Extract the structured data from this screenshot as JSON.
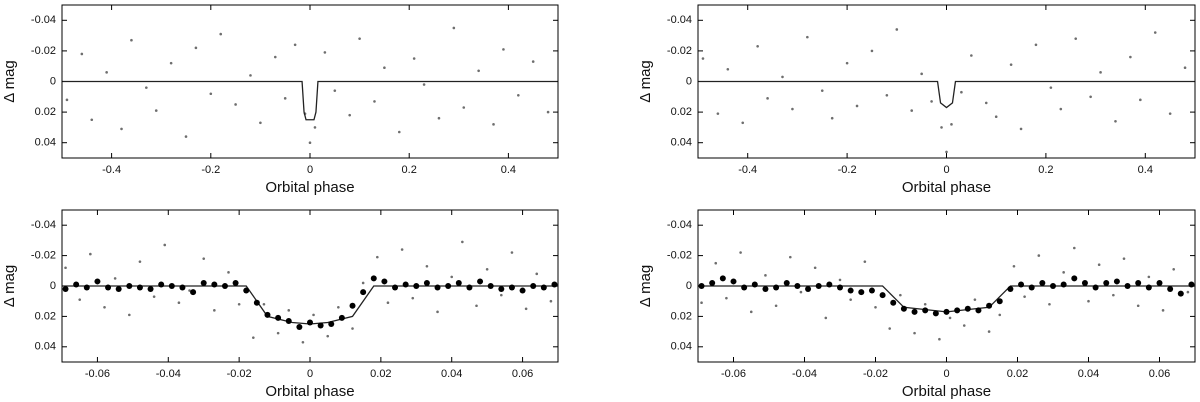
{
  "chart_data": [
    {
      "type": "scatter",
      "xlabel": "Orbital phase",
      "ylabel": "Δ mag",
      "xlim": [
        -0.5,
        0.5
      ],
      "ylim": [
        0.05,
        -0.05
      ],
      "xticks": [
        -0.4,
        -0.2,
        0,
        0.2,
        0.4
      ],
      "yticks": [
        -0.04,
        -0.02,
        0,
        0.02,
        0.04
      ],
      "series": [
        {
          "style": "points",
          "color": "#6e6e6e",
          "x": [
            -0.49,
            -0.46,
            -0.44,
            -0.41,
            -0.38,
            -0.36,
            -0.33,
            -0.31,
            -0.28,
            -0.25,
            -0.23,
            -0.2,
            -0.18,
            -0.15,
            -0.12,
            -0.1,
            -0.07,
            -0.05,
            -0.03,
            -0.01,
            0.0,
            0.01,
            0.03,
            0.05,
            0.08,
            0.1,
            0.13,
            0.15,
            0.18,
            0.21,
            0.23,
            0.26,
            0.29,
            0.31,
            0.34,
            0.37,
            0.39,
            0.42,
            0.45,
            0.48
          ],
          "values": [
            0.012,
            -0.018,
            0.025,
            -0.006,
            0.031,
            -0.027,
            0.004,
            0.019,
            -0.012,
            0.036,
            -0.022,
            0.008,
            -0.031,
            0.015,
            -0.004,
            0.027,
            -0.016,
            0.011,
            -0.024,
            0.021,
            0.04,
            0.03,
            -0.019,
            0.006,
            0.022,
            -0.028,
            0.013,
            -0.009,
            0.033,
            -0.015,
            0.002,
            0.024,
            -0.035,
            0.017,
            -0.007,
            0.028,
            -0.021,
            0.009,
            -0.013,
            0.02
          ]
        },
        {
          "style": "line",
          "color": "#222222",
          "x": [
            -0.5,
            -0.016,
            -0.012,
            -0.008,
            0.008,
            0.012,
            0.016,
            0.5
          ],
          "values": [
            0,
            0,
            0.02,
            0.025,
            0.025,
            0.02,
            0,
            0
          ]
        }
      ]
    },
    {
      "type": "scatter",
      "xlabel": "Orbital phase",
      "ylabel": "Δ mag",
      "xlim": [
        -0.5,
        0.5
      ],
      "ylim": [
        0.05,
        -0.05
      ],
      "xticks": [
        -0.4,
        -0.2,
        0,
        0.2,
        0.4
      ],
      "yticks": [
        -0.04,
        -0.02,
        0,
        0.02,
        0.04
      ],
      "series": [
        {
          "style": "points",
          "color": "#6e6e6e",
          "x": [
            -0.49,
            -0.46,
            -0.44,
            -0.41,
            -0.38,
            -0.36,
            -0.33,
            -0.31,
            -0.28,
            -0.25,
            -0.23,
            -0.2,
            -0.18,
            -0.15,
            -0.12,
            -0.1,
            -0.07,
            -0.05,
            -0.03,
            -0.01,
            0.0,
            0.01,
            0.03,
            0.05,
            0.08,
            0.1,
            0.13,
            0.15,
            0.18,
            0.21,
            0.23,
            0.26,
            0.29,
            0.31,
            0.34,
            0.37,
            0.39,
            0.42,
            0.45,
            0.48
          ],
          "values": [
            -0.015,
            0.021,
            -0.008,
            0.027,
            -0.023,
            0.011,
            -0.003,
            0.018,
            -0.029,
            0.006,
            0.024,
            -0.012,
            0.016,
            -0.02,
            0.009,
            -0.034,
            0.019,
            -0.005,
            0.013,
            0.03,
            0.046,
            0.028,
            0.007,
            -0.017,
            0.014,
            0.023,
            -0.011,
            0.031,
            -0.024,
            0.004,
            0.018,
            -0.028,
            0.01,
            -0.006,
            0.026,
            -0.016,
            0.012,
            -0.032,
            0.021,
            -0.009
          ]
        },
        {
          "style": "line",
          "color": "#222222",
          "x": [
            -0.5,
            -0.018,
            -0.012,
            0,
            0.012,
            0.018,
            0.5
          ],
          "values": [
            0,
            0,
            0.014,
            0.017,
            0.014,
            0,
            0
          ]
        }
      ]
    },
    {
      "type": "scatter",
      "xlabel": "Orbital phase",
      "ylabel": "Δ mag",
      "xlim": [
        -0.07,
        0.07
      ],
      "ylim": [
        0.05,
        -0.05
      ],
      "xticks": [
        -0.06,
        -0.04,
        -0.02,
        0,
        0.02,
        0.04,
        0.06
      ],
      "yticks": [
        -0.04,
        -0.02,
        0,
        0.02,
        0.04
      ],
      "series": [
        {
          "style": "points",
          "color": "#6e6e6e",
          "x": [
            -0.069,
            -0.065,
            -0.062,
            -0.058,
            -0.055,
            -0.051,
            -0.048,
            -0.044,
            -0.041,
            -0.037,
            -0.034,
            -0.03,
            -0.027,
            -0.023,
            -0.02,
            -0.016,
            -0.013,
            -0.009,
            -0.006,
            -0.002,
            0.001,
            0.005,
            0.008,
            0.012,
            0.015,
            0.019,
            0.022,
            0.026,
            0.029,
            0.033,
            0.036,
            0.04,
            0.043,
            0.047,
            0.05,
            0.054,
            0.057,
            0.061,
            0.064,
            0.068
          ],
          "values": [
            -0.012,
            0.009,
            -0.021,
            0.014,
            -0.005,
            0.019,
            -0.016,
            0.007,
            -0.027,
            0.011,
            0.003,
            -0.018,
            0.016,
            -0.009,
            0.012,
            0.034,
            0.012,
            0.031,
            0.016,
            0.037,
            0.019,
            0.033,
            0.014,
            0.028,
            -0.002,
            -0.019,
            0.011,
            -0.024,
            0.008,
            -0.013,
            0.017,
            -0.006,
            -0.029,
            0.013,
            -0.011,
            0.006,
            -0.022,
            0.015,
            -0.008,
            0.01
          ]
        },
        {
          "style": "line",
          "color": "#222222",
          "x": [
            -0.07,
            -0.018,
            -0.012,
            -0.005,
            0,
            0.005,
            0.012,
            0.018,
            0.07
          ],
          "values": [
            0,
            0,
            0.02,
            0.024,
            0.025,
            0.024,
            0.02,
            0,
            0
          ]
        },
        {
          "style": "dots",
          "color": "#000000",
          "x": [
            -0.069,
            -0.066,
            -0.063,
            -0.06,
            -0.057,
            -0.054,
            -0.051,
            -0.048,
            -0.045,
            -0.042,
            -0.039,
            -0.036,
            -0.033,
            -0.03,
            -0.027,
            -0.024,
            -0.021,
            -0.018,
            -0.015,
            -0.012,
            -0.009,
            -0.006,
            -0.003,
            0,
            0.003,
            0.006,
            0.009,
            0.012,
            0.015,
            0.018,
            0.021,
            0.024,
            0.027,
            0.03,
            0.033,
            0.036,
            0.039,
            0.042,
            0.045,
            0.048,
            0.051,
            0.054,
            0.057,
            0.06,
            0.063,
            0.066,
            0.069
          ],
          "values": [
            0.002,
            -0.001,
            0.001,
            -0.003,
            0.001,
            0.002,
            0,
            0.001,
            0.002,
            -0.001,
            0,
            0.001,
            0.004,
            -0.002,
            -0.001,
            0,
            -0.002,
            0.003,
            0.011,
            0.019,
            0.021,
            0.023,
            0.027,
            0.024,
            0.026,
            0.025,
            0.021,
            0.013,
            0.004,
            -0.005,
            -0.003,
            0.001,
            -0.001,
            0,
            -0.002,
            0.001,
            0,
            -0.002,
            0.001,
            -0.003,
            0,
            0.002,
            0.001,
            0.003,
            0,
            0.001,
            -0.001
          ]
        }
      ]
    },
    {
      "type": "scatter",
      "xlabel": "Orbital phase",
      "ylabel": "Δ mag",
      "xlim": [
        -0.07,
        0.07
      ],
      "ylim": [
        0.05,
        -0.05
      ],
      "xticks": [
        -0.06,
        -0.04,
        -0.02,
        0,
        0.02,
        0.04,
        0.06
      ],
      "yticks": [
        -0.04,
        -0.02,
        0,
        0.02,
        0.04
      ],
      "series": [
        {
          "style": "points",
          "color": "#6e6e6e",
          "x": [
            -0.069,
            -0.065,
            -0.062,
            -0.058,
            -0.055,
            -0.051,
            -0.048,
            -0.044,
            -0.041,
            -0.037,
            -0.034,
            -0.03,
            -0.027,
            -0.023,
            -0.02,
            -0.016,
            -0.013,
            -0.009,
            -0.006,
            -0.002,
            0.001,
            0.005,
            0.008,
            0.012,
            0.015,
            0.019,
            0.022,
            0.026,
            0.029,
            0.033,
            0.036,
            0.04,
            0.043,
            0.047,
            0.05,
            0.054,
            0.057,
            0.061,
            0.064,
            0.068
          ],
          "values": [
            0.011,
            -0.015,
            0.008,
            -0.022,
            0.017,
            -0.007,
            0.013,
            -0.019,
            0.004,
            -0.012,
            0.021,
            -0.004,
            0.009,
            -0.016,
            0.014,
            0.028,
            0.006,
            0.031,
            0.012,
            0.035,
            0.021,
            0.026,
            0.009,
            0.03,
            0.019,
            -0.013,
            0.007,
            -0.02,
            0.012,
            -0.009,
            -0.025,
            0.01,
            -0.014,
            0.006,
            -0.018,
            0.013,
            -0.006,
            0.016,
            -0.011,
            0.004
          ]
        },
        {
          "style": "line",
          "color": "#222222",
          "x": [
            -0.07,
            -0.018,
            -0.012,
            0,
            0.012,
            0.018,
            0.07
          ],
          "values": [
            0,
            0,
            0.014,
            0.017,
            0.014,
            0,
            0
          ]
        },
        {
          "style": "dots",
          "color": "#000000",
          "x": [
            -0.069,
            -0.066,
            -0.063,
            -0.06,
            -0.057,
            -0.054,
            -0.051,
            -0.048,
            -0.045,
            -0.042,
            -0.039,
            -0.036,
            -0.033,
            -0.03,
            -0.027,
            -0.024,
            -0.021,
            -0.018,
            -0.015,
            -0.012,
            -0.009,
            -0.006,
            -0.003,
            0,
            0.003,
            0.006,
            0.009,
            0.012,
            0.015,
            0.018,
            0.021,
            0.024,
            0.027,
            0.03,
            0.033,
            0.036,
            0.039,
            0.042,
            0.045,
            0.048,
            0.051,
            0.054,
            0.057,
            0.06,
            0.063,
            0.066,
            0.069
          ],
          "values": [
            0,
            -0.002,
            -0.005,
            -0.003,
            0.001,
            -0.001,
            0.002,
            0.001,
            -0.002,
            0,
            0.002,
            0,
            -0.001,
            0.001,
            0.003,
            0.004,
            0.003,
            0.006,
            0.011,
            0.015,
            0.017,
            0.016,
            0.018,
            0.017,
            0.016,
            0.015,
            0.016,
            0.013,
            0.01,
            0.002,
            -0.001,
            0.001,
            -0.002,
            0,
            -0.001,
            -0.005,
            -0.002,
            0.001,
            -0.002,
            -0.003,
            0,
            -0.002,
            0.001,
            -0.002,
            0.002,
            0.005,
            -0.001
          ]
        }
      ]
    }
  ]
}
